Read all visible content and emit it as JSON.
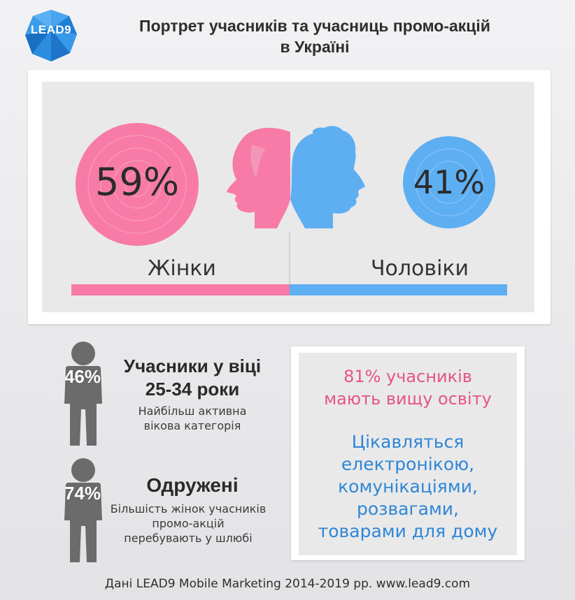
{
  "logo": {
    "text": "LEAD9",
    "color": "#2f8fe0"
  },
  "title": {
    "line1": "Портрет учасників та учасниць промо-акцій",
    "line2": "в Україні"
  },
  "gender": {
    "women": {
      "percent_label": "59%",
      "value": 59,
      "label": "Жінки",
      "color": "#f77ba6"
    },
    "men": {
      "percent_label": "41%",
      "value": 41,
      "label": "Чоловіки",
      "color": "#5eaef2"
    }
  },
  "stats": [
    {
      "percent_label": "46%",
      "title_line1": "Учасники у віці",
      "title_line2": "25-34 роки",
      "sub_line1": "Найбільш активна",
      "sub_line2": "вікова категорія"
    },
    {
      "percent_label": "74%",
      "title_line1": "Одружені",
      "sub_line1": "Більшість жінок учасників",
      "sub_line2": "промо-акцій",
      "sub_line3": "перебувають у шлюбі"
    }
  ],
  "education": {
    "line1": "81% учасників",
    "line2": "мають вищу освіту"
  },
  "interests": {
    "line1": "Цікавляться",
    "line2": "електронікою,",
    "line3": "комунікаціями,",
    "line4": "розвагами,",
    "line5": "товарами для дому"
  },
  "footer": "Дані LEAD9 Mobile Marketing 2014-2019 рр. www.lead9.com",
  "colors": {
    "person_gray": "#6b6b6b",
    "pink_text": "#e6567f",
    "blue_text": "#2f86d6"
  }
}
